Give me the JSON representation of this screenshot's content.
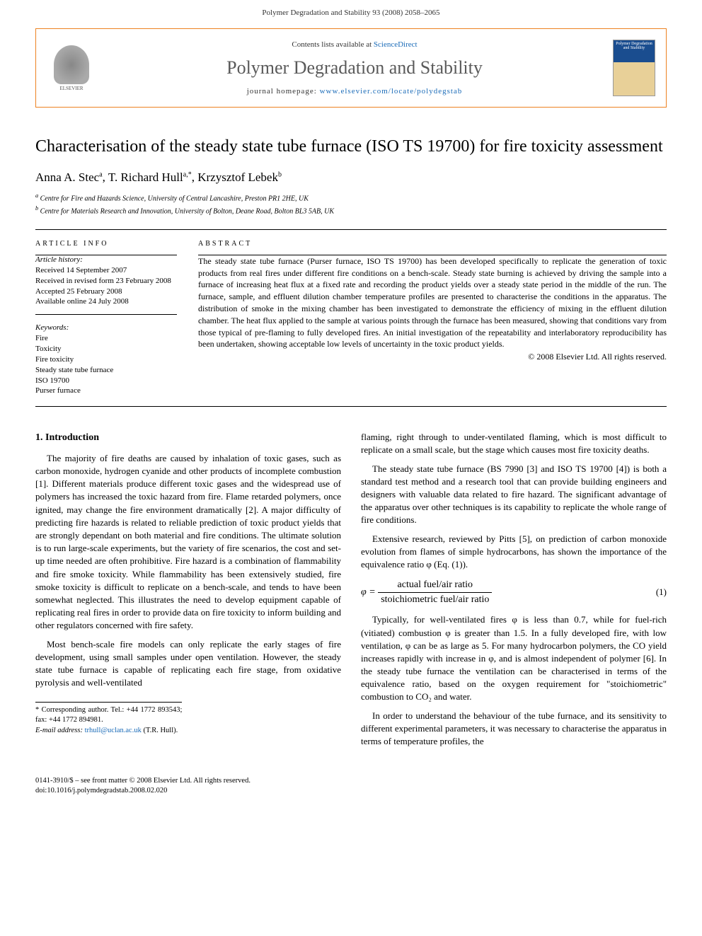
{
  "header": {
    "citation": "Polymer Degradation and Stability 93 (2008) 2058–2065"
  },
  "masthead": {
    "elsevier_label": "ELSEVIER",
    "contents_prefix": "Contents lists available at ",
    "contents_link": "ScienceDirect",
    "journal_name": "Polymer Degradation and Stability",
    "homepage_prefix": "journal homepage: ",
    "homepage_url": "www.elsevier.com/locate/polydegstab",
    "cover_text": "Polymer Degradation and Stability"
  },
  "title": "Characterisation of the steady state tube furnace (ISO TS 19700) for fire toxicity assessment",
  "authors_html": "Anna A. Stec<sup>a</sup>, T. Richard Hull<sup>a,*</sup>, Krzysztof Lebek<sup>b</sup>",
  "authors": [
    {
      "name": "Anna A. Stec",
      "aff": "a"
    },
    {
      "name": "T. Richard Hull",
      "aff": "a,*"
    },
    {
      "name": "Krzysztof Lebek",
      "aff": "b"
    }
  ],
  "affiliations": [
    {
      "label": "a",
      "text": "Centre for Fire and Hazards Science, University of Central Lancashire, Preston PR1 2HE, UK"
    },
    {
      "label": "b",
      "text": "Centre for Materials Research and Innovation, University of Bolton, Deane Road, Bolton BL3 5AB, UK"
    }
  ],
  "article_info_label": "ARTICLE INFO",
  "abstract_label": "ABSTRACT",
  "history": {
    "label": "Article history:",
    "items": [
      "Received 14 September 2007",
      "Received in revised form 23 February 2008",
      "Accepted 25 February 2008",
      "Available online 24 July 2008"
    ]
  },
  "keywords": {
    "label": "Keywords:",
    "items": [
      "Fire",
      "Toxicity",
      "Fire toxicity",
      "Steady state tube furnace",
      "ISO 19700",
      "Purser furnace"
    ]
  },
  "abstract": "The steady state tube furnace (Purser furnace, ISO TS 19700) has been developed specifically to replicate the generation of toxic products from real fires under different fire conditions on a bench-scale. Steady state burning is achieved by driving the sample into a furnace of increasing heat flux at a fixed rate and recording the product yields over a steady state period in the middle of the run. The furnace, sample, and effluent dilution chamber temperature profiles are presented to characterise the conditions in the apparatus. The distribution of smoke in the mixing chamber has been investigated to demonstrate the efficiency of mixing in the effluent dilution chamber. The heat flux applied to the sample at various points through the furnace has been measured, showing that conditions vary from those typical of pre-flaming to fully developed fires. An initial investigation of the repeatability and interlaboratory reproducibility has been undertaken, showing acceptable low levels of uncertainty in the toxic product yields.",
  "copyright": "© 2008 Elsevier Ltd. All rights reserved.",
  "section1": {
    "heading": "1. Introduction",
    "p1": "The majority of fire deaths are caused by inhalation of toxic gases, such as carbon monoxide, hydrogen cyanide and other products of incomplete combustion [1]. Different materials produce different toxic gases and the widespread use of polymers has increased the toxic hazard from fire. Flame retarded polymers, once ignited, may change the fire environment dramatically [2]. A major difficulty of predicting fire hazards is related to reliable prediction of toxic product yields that are strongly dependant on both material and fire conditions. The ultimate solution is to run large-scale experiments, but the variety of fire scenarios, the cost and set-up time needed are often prohibitive. Fire hazard is a combination of flammability and fire smoke toxicity. While flammability has been extensively studied, fire smoke toxicity is difficult to replicate on a bench-scale, and tends to have been somewhat neglected. This illustrates the need to develop equipment capable of replicating real fires in order to provide data on fire toxicity to inform building and other regulators concerned with fire safety.",
    "p2": "Most bench-scale fire models can only replicate the early stages of fire development, using small samples under open ventilation. However, the steady state tube furnace is capable of replicating each fire stage, from oxidative pyrolysis and well-ventilated",
    "p3": "flaming, right through to under-ventilated flaming, which is most difficult to replicate on a small scale, but the stage which causes most fire toxicity deaths.",
    "p4": "The steady state tube furnace (BS 7990 [3] and ISO TS 19700 [4]) is both a standard test method and a research tool that can provide building engineers and designers with valuable data related to fire hazard. The significant advantage of the apparatus over other techniques is its capability to replicate the whole range of fire conditions.",
    "p5": "Extensive research, reviewed by Pitts [5], on prediction of carbon monoxide evolution from flames of simple hydrocarbons, has shown the importance of the equivalence ratio φ (Eq. (1)).",
    "eq_phi": "φ =",
    "eq_num": "actual fuel/air ratio",
    "eq_den": "stoichiometric fuel/air ratio",
    "eq_label": "(1)",
    "p6": "Typically, for well-ventilated fires φ is less than 0.7, while for fuel-rich (vitiated) combustion φ is greater than 1.5. In a fully developed fire, with low ventilation, φ can be as large as 5. For many hydrocarbon polymers, the CO yield increases rapidly with increase in φ, and is almost independent of polymer [6]. In the steady tube furnace the ventilation can be characterised in terms of the equivalence ratio, based on the oxygen requirement for \"stoichiometric\" combustion to CO₂ and water.",
    "p7": "In order to understand the behaviour of the tube furnace, and its sensitivity to different experimental parameters, it was necessary to characterise the apparatus in terms of temperature profiles, the"
  },
  "footnote": {
    "corr": "* Corresponding author. Tel.: +44 1772 893543; fax: +44 1772 894981.",
    "email_label": "E-mail address: ",
    "email": "trhull@uclan.ac.uk",
    "email_suffix": " (T.R. Hull)."
  },
  "footer": {
    "left1": "0141-3910/$ – see front matter © 2008 Elsevier Ltd. All rights reserved.",
    "left2": "doi:10.1016/j.polymdegradstab.2008.02.020"
  },
  "colors": {
    "border": "#ed8221",
    "link": "#1a6bb8",
    "journal_title": "#5a5a5a"
  }
}
